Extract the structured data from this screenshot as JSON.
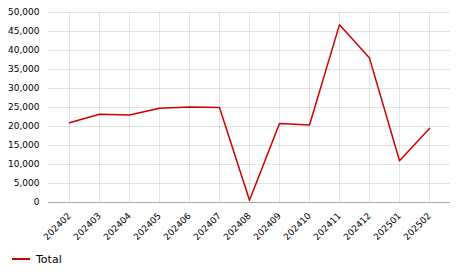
{
  "chart_data": {
    "type": "line",
    "categories": [
      "202402",
      "202403",
      "202404",
      "202405",
      "202406",
      "202407",
      "202408",
      "202409",
      "202410",
      "202411",
      "202412",
      "202501",
      "202502"
    ],
    "series": [
      {
        "name": "Total",
        "color": "#cc0000",
        "values": [
          21000,
          23200,
          23000,
          24800,
          25100,
          25000,
          600,
          20800,
          20400,
          46800,
          38000,
          11000,
          19500
        ]
      }
    ],
    "ylim": [
      0,
      50000
    ],
    "yticks": [
      0,
      {
        "value": 5000,
        "label": "5,000"
      },
      {
        "value": 10000,
        "label": "10,000"
      },
      {
        "value": 15000,
        "label": "15,000"
      },
      {
        "value": 20000,
        "label": "20,000"
      },
      {
        "value": 25000,
        "label": "25,000"
      },
      {
        "value": 30000,
        "label": "30,000"
      },
      {
        "value": 35000,
        "label": "35,000"
      },
      {
        "value": 40000,
        "label": "40,000"
      },
      {
        "value": 45000,
        "label": "45,000"
      },
      {
        "value": 50000,
        "label": "50,000"
      }
    ],
    "grid": true,
    "legend": "bottom"
  }
}
